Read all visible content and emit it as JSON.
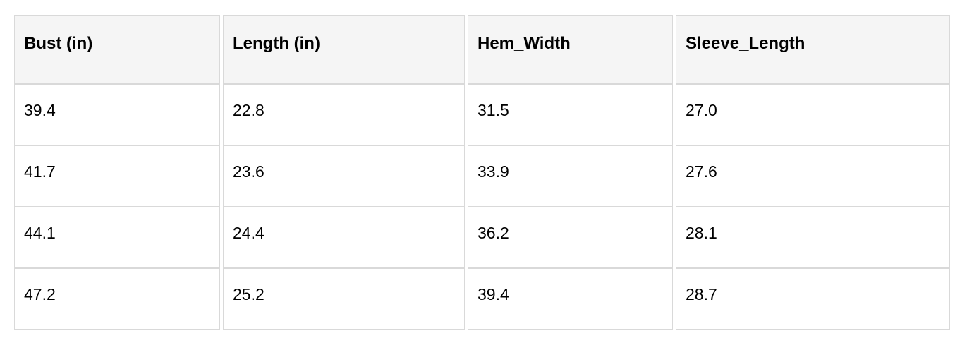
{
  "chart_data": {
    "type": "table",
    "columns": [
      "Bust (in)",
      "Length (in)",
      "Hem_Width",
      "Sleeve_Length"
    ],
    "rows": [
      [
        "39.4",
        "22.8",
        "31.5",
        "27.0"
      ],
      [
        "41.7",
        "23.6",
        "33.9",
        "27.6"
      ],
      [
        "44.1",
        "24.4",
        "36.2",
        "28.1"
      ],
      [
        "47.2",
        "25.2",
        "39.4",
        "28.7"
      ]
    ]
  },
  "colors": {
    "header_bg": "#f5f5f5",
    "border": "#d9d9d9",
    "text": "#000000",
    "row_bg": "#ffffff",
    "page_bg": "#ffffff"
  }
}
